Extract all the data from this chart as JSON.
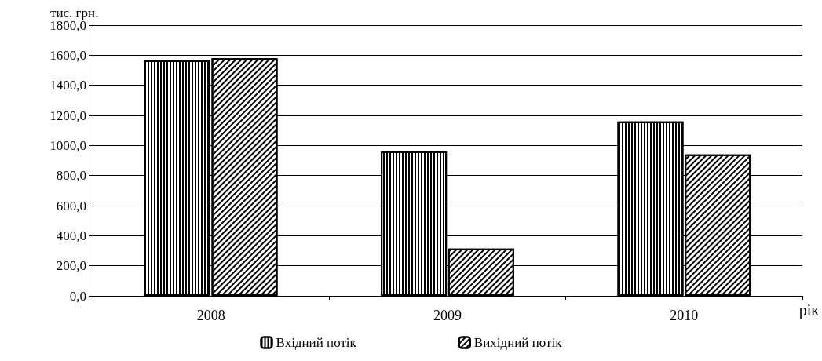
{
  "chart_data": {
    "type": "bar",
    "xlabel": "рік",
    "ylabel": "тис. грн.",
    "categories": [
      "2008",
      "2009",
      "2010"
    ],
    "series": [
      {
        "name": "Вхідний потік",
        "color": "#000000",
        "values": [
          1565,
          960,
          1160
        ]
      },
      {
        "name": "Вихідний потік",
        "color": "#000000",
        "values": [
          1580,
          315,
          940
        ]
      }
    ],
    "ylim": [
      0,
      1800
    ],
    "yticks": [
      {
        "value": 0,
        "label": "0,0"
      },
      {
        "value": 200,
        "label": "200,0"
      },
      {
        "value": 400,
        "label": "400,0"
      },
      {
        "value": 600,
        "label": "600,0"
      },
      {
        "value": 800,
        "label": "800,0"
      },
      {
        "value": 1000,
        "label": "1000,0"
      },
      {
        "value": 1200,
        "label": "1200,0"
      },
      {
        "value": 1400,
        "label": "1400,0"
      },
      {
        "value": 1600,
        "label": "1600,0"
      },
      {
        "value": 1800,
        "label": "1800,0"
      }
    ],
    "grid": "y",
    "legend": "bottom"
  }
}
